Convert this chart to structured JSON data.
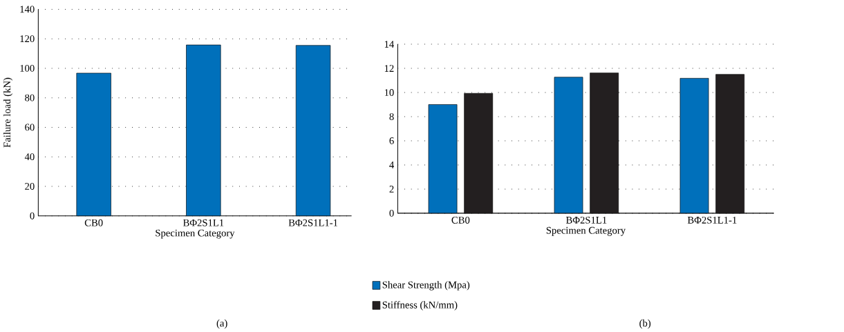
{
  "chart_data": [
    {
      "type": "bar",
      "xlabel": "Specimen Category",
      "ylabel": "Failure load (kN)",
      "categories": [
        "CB0",
        "BΦ2S1L1",
        "BΦ2S1L1-1"
      ],
      "series": [
        {
          "color": "#0070bb",
          "values": [
            96.7,
            115.8,
            115.5
          ]
        }
      ],
      "ylim": [
        0,
        140
      ],
      "yticks": [
        0,
        20,
        40,
        60,
        80,
        100,
        120,
        140
      ],
      "grid": "y",
      "annotations": [
        "(a)"
      ]
    },
    {
      "type": "bar",
      "xlabel": "Specimen Category",
      "categories": [
        "CB0",
        "BΦ2S1L1",
        "BΦ2S1L1-1"
      ],
      "series": [
        {
          "name": "Shear Strength (Mpa)",
          "color": "#0070bb",
          "values": [
            9.0,
            11.27,
            11.18
          ]
        },
        {
          "name": "Stiffness (kN/mm)",
          "color": "#231f20",
          "values": [
            9.93,
            11.62,
            11.5
          ]
        }
      ],
      "ylim": [
        0,
        14
      ],
      "yticks": [
        0,
        2,
        4,
        6,
        8,
        10,
        12,
        14
      ],
      "grid": "y",
      "legend": "bottom",
      "annotations": [
        "(b)"
      ]
    }
  ]
}
